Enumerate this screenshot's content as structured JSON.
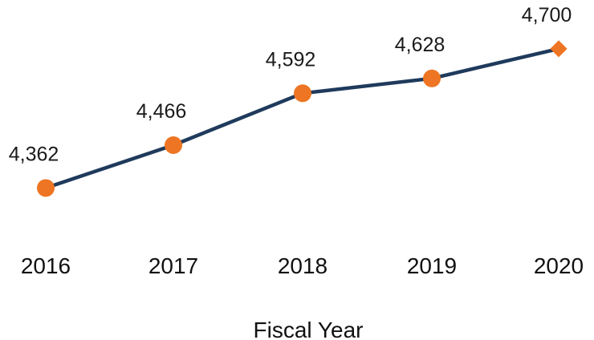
{
  "chart_data": {
    "type": "line",
    "title": "",
    "xlabel": "Fiscal Year",
    "ylabel": "",
    "grid": false,
    "legend": "none",
    "categories": [
      "2016",
      "2017",
      "2018",
      "2019",
      "2020"
    ],
    "series": [
      {
        "values": [
          4362,
          4466,
          4592,
          4628,
          4700
        ],
        "value_labels": [
          "4,362",
          "4,466",
          "4,592",
          "4,628",
          "4,700"
        ],
        "marker_shapes": [
          "circle",
          "circle",
          "circle",
          "circle",
          "diamond"
        ]
      }
    ],
    "ylim": [
      4000,
      4760
    ],
    "colors": {
      "line": "#1f3a5c",
      "marker": "#ee7523"
    }
  }
}
